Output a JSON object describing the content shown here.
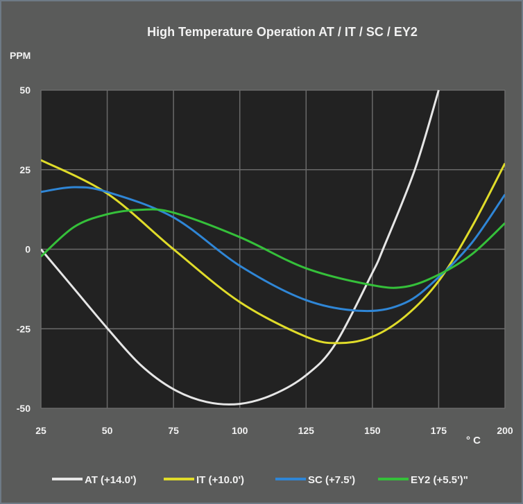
{
  "chart_data": {
    "type": "line",
    "title": "High Temperature Operation AT / IT / SC / EY2",
    "ylabel": "PPM",
    "xlabel": "° C",
    "xlim": [
      25,
      200
    ],
    "ylim": [
      -50,
      50
    ],
    "x_ticks": [
      "25",
      "50",
      "75",
      "100",
      "125",
      "150",
      "175",
      "200"
    ],
    "y_ticks": [
      "50",
      "25",
      "0",
      "-25",
      "-50"
    ],
    "grid": true,
    "legend": "bottom",
    "series": [
      {
        "name": "AT (+14.0')",
        "color": "#e6e6e6",
        "x": [
          25,
          37.5,
          50,
          62.5,
          75,
          87.5,
          100,
          112.5,
          125,
          136,
          150,
          154,
          166,
          175
        ],
        "y": [
          0,
          -12.4,
          -24.8,
          -36.3,
          -44,
          -48,
          -48.6,
          -45.7,
          -39.6,
          -29.8,
          -7.4,
          0,
          25,
          50
        ]
      },
      {
        "name": "IT (+10.0')",
        "color": "#e0dc2a",
        "x": [
          25,
          50,
          75,
          100,
          125,
          137.5,
          150,
          162.5,
          175,
          187.5,
          200
        ],
        "y": [
          28,
          17.5,
          0,
          -16.6,
          -27.5,
          -29.5,
          -27.5,
          -21,
          -10,
          7,
          27
        ]
      },
      {
        "name": "SC (+7.5')",
        "color": "#2f86d6",
        "x": [
          25,
          37.5,
          50,
          75,
          100,
          125,
          147,
          162.5,
          175,
          187.5,
          200
        ],
        "y": [
          18,
          19.5,
          18,
          10,
          -5.2,
          -16,
          -19.4,
          -16.8,
          -8.8,
          2,
          17.2
        ]
      },
      {
        "name": "EY2 (+5.5')\"",
        "color": "#35c03a",
        "x": [
          25,
          37.5,
          50,
          62.5,
          75,
          100,
          125,
          150,
          162.5,
          175,
          187.5,
          200
        ],
        "y": [
          -2.3,
          7,
          11,
          12.4,
          11.5,
          3.8,
          -6,
          -11.3,
          -11.8,
          -8,
          -1.6,
          8.2
        ]
      }
    ]
  }
}
